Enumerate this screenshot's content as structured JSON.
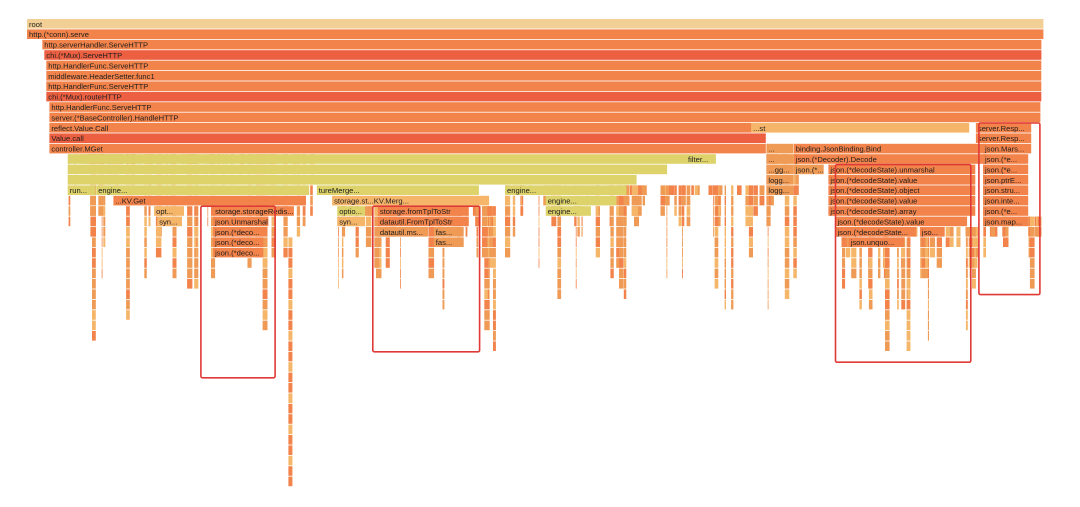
{
  "view": {
    "type": "flame graph"
  },
  "colors": {
    "root": "#f2cf94",
    "bright": "#f2834a",
    "red": "#ec5f41",
    "orange": "#ef9a55",
    "light": "#f6b66a",
    "yellow": "#ddd36a",
    "highlight_box": "#e03a36"
  },
  "chart_data": {
    "type": "flamegraph",
    "total": 1000,
    "frames": [
      {
        "d": 0,
        "s": 0,
        "w": 1000,
        "n": "root",
        "c": "root"
      },
      {
        "d": 1,
        "s": 0,
        "w": 1000,
        "n": "http.(*conn).serve",
        "c": "bright"
      },
      {
        "d": 2,
        "s": 15,
        "w": 983,
        "n": "http.serverHandler.ServeHTTP",
        "c": "bright"
      },
      {
        "d": 3,
        "s": 17,
        "w": 981,
        "n": "chi.(*Mux).ServeHTTP",
        "c": "red"
      },
      {
        "d": 4,
        "s": 19,
        "w": 979,
        "n": "http.HandlerFunc.ServeHTTP",
        "c": "bright"
      },
      {
        "d": 5,
        "s": 19,
        "w": 979,
        "n": "middleware.HeaderSetter.func1",
        "c": "bright"
      },
      {
        "d": 6,
        "s": 19,
        "w": 979,
        "n": "http.HandlerFunc.ServeHTTP",
        "c": "bright"
      },
      {
        "d": 7,
        "s": 19,
        "w": 979,
        "n": "chi.(*Mux).routeHTTP",
        "c": "red"
      },
      {
        "d": 8,
        "s": 22,
        "w": 975,
        "n": "http.HandlerFunc.ServeHTTP",
        "c": "bright"
      },
      {
        "d": 9,
        "s": 22,
        "w": 975,
        "n": "server.(*BaseController).HandleHTTP",
        "c": "bright"
      },
      {
        "d": 10,
        "s": 22,
        "w": 705,
        "n": "reflect.Value.Call",
        "c": "bright"
      },
      {
        "d": 11,
        "s": 22,
        "w": 705,
        "n": "Value.call",
        "c": "red"
      },
      {
        "d": 12,
        "s": 22,
        "w": 705,
        "n": "controller.MGet",
        "c": "bright"
      },
      {
        "d": 13,
        "s": 40,
        "w": 610,
        "n": "",
        "c": "yellow"
      },
      {
        "d": 14,
        "s": 40,
        "w": 590,
        "n": "",
        "c": "yellow"
      },
      {
        "d": 15,
        "s": 40,
        "w": 560,
        "n": "",
        "c": "yellow"
      },
      {
        "d": 16,
        "s": 40,
        "w": 28,
        "n": "run...",
        "c": "yellow"
      },
      {
        "d": 16,
        "s": 68,
        "w": 210,
        "n": "engine...",
        "c": "yellow"
      },
      {
        "d": 16,
        "s": 285,
        "w": 160,
        "n": "tureMerge...",
        "c": "yellow"
      },
      {
        "d": 16,
        "s": 470,
        "w": 120,
        "n": "engine...",
        "c": "yellow"
      },
      {
        "d": 17,
        "s": 85,
        "w": 190,
        "n": "...KV.Get",
        "c": "bright"
      },
      {
        "d": 17,
        "s": 300,
        "w": 155,
        "n": "storage.st...KV.Merg...",
        "c": "light"
      },
      {
        "d": 17,
        "s": 510,
        "w": 70,
        "n": "engine...",
        "c": "yellow"
      },
      {
        "d": 18,
        "s": 125,
        "w": 30,
        "n": "opt...",
        "c": "light"
      },
      {
        "d": 18,
        "s": 183,
        "w": 80,
        "n": "storage.storageRedis...",
        "c": "bright"
      },
      {
        "d": 18,
        "s": 305,
        "w": 28,
        "n": "optio...",
        "c": "yellow"
      },
      {
        "d": 18,
        "s": 345,
        "w": 90,
        "n": "storage.fromTplToStr",
        "c": "bright"
      },
      {
        "d": 18,
        "s": 510,
        "w": 45,
        "n": "engine...",
        "c": "yellow"
      },
      {
        "d": 19,
        "s": 128,
        "w": 25,
        "n": "syn...",
        "c": "light"
      },
      {
        "d": 19,
        "s": 183,
        "w": 55,
        "n": "json.Unmarshal",
        "c": "bright"
      },
      {
        "d": 19,
        "s": 305,
        "w": 28,
        "n": "syn...",
        "c": "light"
      },
      {
        "d": 19,
        "s": 345,
        "w": 90,
        "n": "datautil.FromTplToStr",
        "c": "bright"
      },
      {
        "d": 20,
        "s": 183,
        "w": 50,
        "n": "json.(*deco...",
        "c": "bright"
      },
      {
        "d": 20,
        "s": 345,
        "w": 50,
        "n": "datautil.ms...",
        "c": "orange"
      },
      {
        "d": 20,
        "s": 400,
        "w": 30,
        "n": "fas...",
        "c": "orange"
      },
      {
        "d": 21,
        "s": 183,
        "w": 50,
        "n": "json.(*deco...",
        "c": "bright"
      },
      {
        "d": 21,
        "s": 400,
        "w": 30,
        "n": "fas...",
        "c": "orange"
      },
      {
        "d": 22,
        "s": 183,
        "w": 50,
        "n": "json.(*deco...",
        "c": "bright"
      },
      {
        "d": 12,
        "s": 727,
        "w": 27,
        "n": "...",
        "c": "orange"
      },
      {
        "d": 12,
        "s": 754,
        "w": 190,
        "n": "binding.JsonBinding.Bind",
        "c": "bright"
      },
      {
        "d": 13,
        "s": 727,
        "w": 27,
        "n": "...",
        "c": "orange"
      },
      {
        "d": 13,
        "s": 754,
        "w": 190,
        "n": "json.(*Decoder).Decode",
        "c": "bright"
      },
      {
        "d": 14,
        "s": 727,
        "w": 27,
        "n": "...gg...",
        "c": "orange"
      },
      {
        "d": 14,
        "s": 754,
        "w": 30,
        "n": "json.(*...",
        "c": "orange"
      },
      {
        "d": 14,
        "s": 788,
        "w": 145,
        "n": "json.(*decodeState).unmarshal",
        "c": "bright"
      },
      {
        "d": 15,
        "s": 727,
        "w": 27,
        "n": "logg...",
        "c": "orange"
      },
      {
        "d": 15,
        "s": 788,
        "w": 145,
        "n": "json.(*decodeState).value",
        "c": "bright"
      },
      {
        "d": 16,
        "s": 727,
        "w": 27,
        "n": "logg...",
        "c": "orange"
      },
      {
        "d": 16,
        "s": 788,
        "w": 145,
        "n": "json.(*decodeState).object",
        "c": "bright"
      },
      {
        "d": 17,
        "s": 788,
        "w": 145,
        "n": "json.(*decodeState).value",
        "c": "bright"
      },
      {
        "d": 18,
        "s": 788,
        "w": 145,
        "n": "json.(*decodeState).array",
        "c": "bright"
      },
      {
        "d": 19,
        "s": 795,
        "w": 130,
        "n": "json.(*decodeState).value",
        "c": "bright"
      },
      {
        "d": 20,
        "s": 795,
        "w": 80,
        "n": "json.(*decodeState...",
        "c": "bright"
      },
      {
        "d": 20,
        "s": 878,
        "w": 25,
        "n": "jso...",
        "c": "bright"
      },
      {
        "d": 21,
        "s": 808,
        "w": 55,
        "n": "json.unquo...",
        "c": "bright"
      },
      {
        "d": 10,
        "s": 933,
        "w": 55,
        "n": "server.Resp...",
        "c": "bright"
      },
      {
        "d": 11,
        "s": 933,
        "w": 55,
        "n": "server.Resp...",
        "c": "bright"
      },
      {
        "d": 12,
        "s": 940,
        "w": 48,
        "n": "json.Mars...",
        "c": "bright"
      },
      {
        "d": 13,
        "s": 940,
        "w": 45,
        "n": "json.(*e...",
        "c": "bright"
      },
      {
        "d": 14,
        "s": 940,
        "w": 45,
        "n": "json.(*e...",
        "c": "bright"
      },
      {
        "d": 15,
        "s": 940,
        "w": 45,
        "n": "json.ptrE...",
        "c": "bright"
      },
      {
        "d": 16,
        "s": 940,
        "w": 45,
        "n": "json.stru...",
        "c": "bright"
      },
      {
        "d": 17,
        "s": 940,
        "w": 45,
        "n": "json.inte...",
        "c": "bright"
      },
      {
        "d": 18,
        "s": 940,
        "w": 45,
        "n": "json.(*e...",
        "c": "bright"
      },
      {
        "d": 19,
        "s": 940,
        "w": 45,
        "n": "json.map...",
        "c": "bright"
      },
      {
        "d": 13,
        "s": 648,
        "w": 30,
        "n": "filter...",
        "c": "yellow"
      },
      {
        "d": 10,
        "s": 712,
        "w": 215,
        "n": "...st",
        "c": "light"
      }
    ],
    "highlights": [
      {
        "s": 171,
        "w": 73,
        "d0": 18,
        "d1": 34.5
      },
      {
        "s": 340,
        "w": 105,
        "d0": 18,
        "d1": 32
      },
      {
        "s": 795,
        "w": 133,
        "d0": 14,
        "d1": 33
      },
      {
        "s": 936,
        "w": 60,
        "d0": 10,
        "d1": 26.5
      }
    ]
  }
}
